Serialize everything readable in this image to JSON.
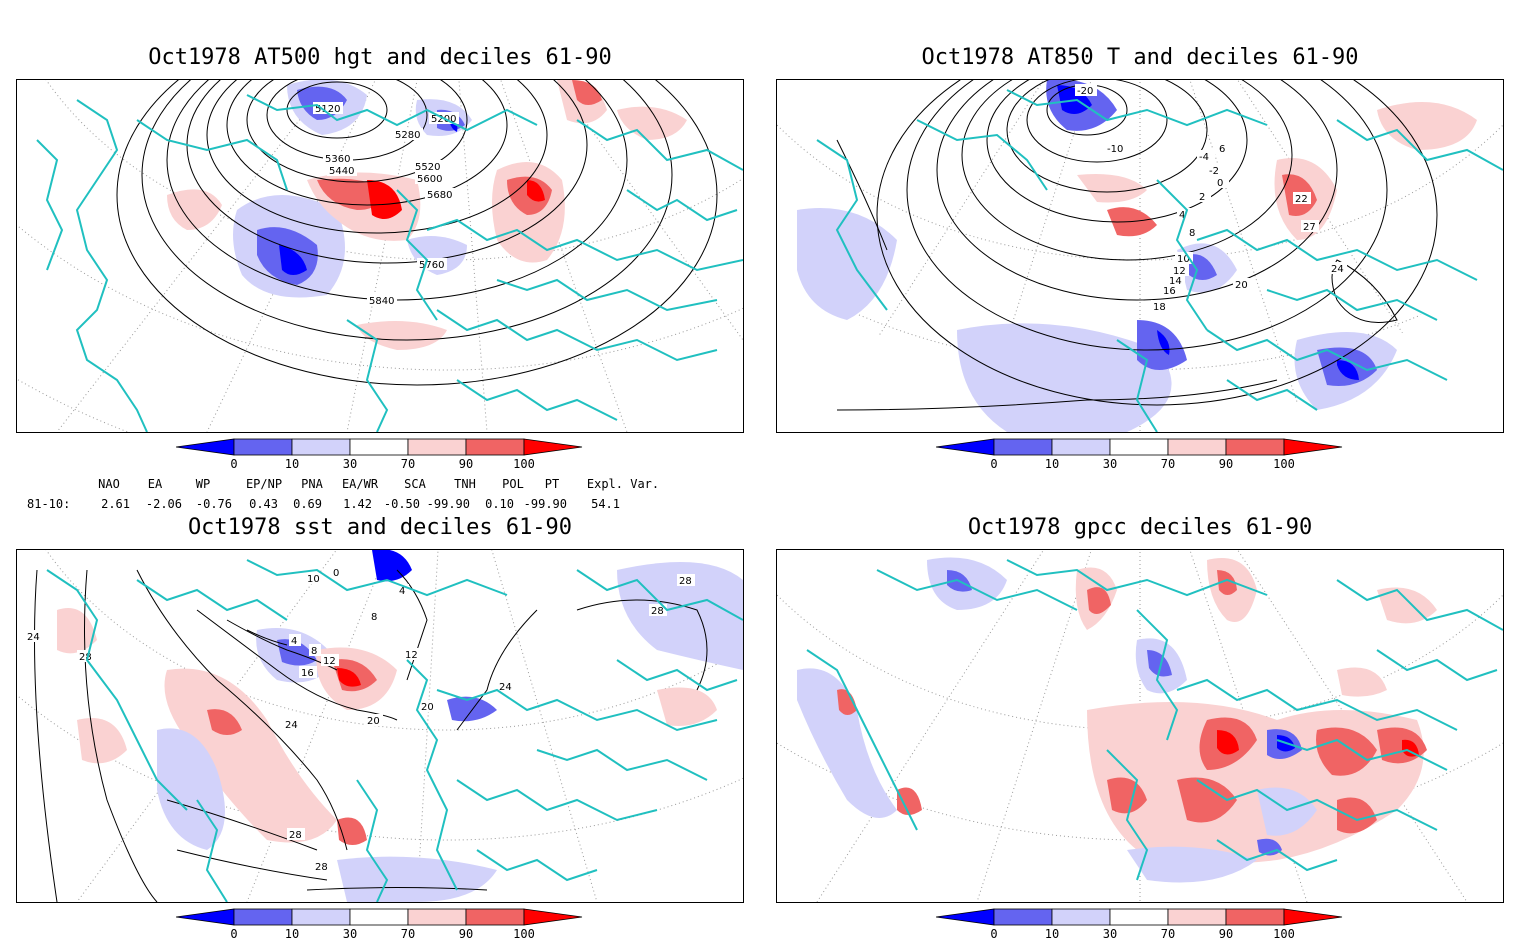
{
  "panels": [
    {
      "id": "at500",
      "title": "Oct1978 AT500 hgt and deciles 61-90",
      "contour_labels": [
        "5120",
        "5200",
        "5280",
        "5360",
        "5440",
        "5520",
        "5600",
        "5680",
        "5760",
        "5840"
      ]
    },
    {
      "id": "at850",
      "title": "Oct1978 AT850 T and deciles 61-90",
      "contour_labels": [
        "-20",
        "-10",
        "-4",
        "-2",
        "0",
        "2",
        "4",
        "6",
        "8",
        "10",
        "12",
        "14",
        "16",
        "18",
        "20",
        "22",
        "24",
        "27"
      ]
    },
    {
      "id": "sst",
      "title": "Oct1978 sst and deciles 61-90",
      "contour_labels": [
        "0",
        "4",
        "8",
        "10",
        "12",
        "16",
        "20",
        "24",
        "28"
      ]
    },
    {
      "id": "gpcc",
      "title": "Oct1978 gpcc deciles 61-90",
      "contour_labels": []
    }
  ],
  "colorbar": {
    "tick_labels": [
      "0",
      "10",
      "30",
      "70",
      "90",
      "100"
    ],
    "colors": {
      "dark_blue": "#0000ff",
      "mid_blue": "#6464f0",
      "light_blue": "#d2d2fa",
      "white": "#ffffff",
      "light_red": "#fad2d2",
      "mid_red": "#f06464",
      "dark_red": "#ff0000"
    }
  },
  "indices": {
    "headers": [
      "NAO",
      "EA",
      "WP",
      "EP/NP",
      "PNA",
      "EA/WR",
      "SCA",
      "TNH",
      "POL",
      "PT",
      "Expl. Var."
    ],
    "row_label": "81-10:",
    "values": [
      "2.61",
      "-2.06",
      "-0.76",
      "0.43",
      "0.69",
      "1.42",
      "-0.50",
      "-99.90",
      "0.10",
      "-99.90",
      "54.1"
    ]
  },
  "colors": {
    "coastline": "#20c0c0",
    "contour": "#000000",
    "graticule": "#9a9a9a"
  }
}
